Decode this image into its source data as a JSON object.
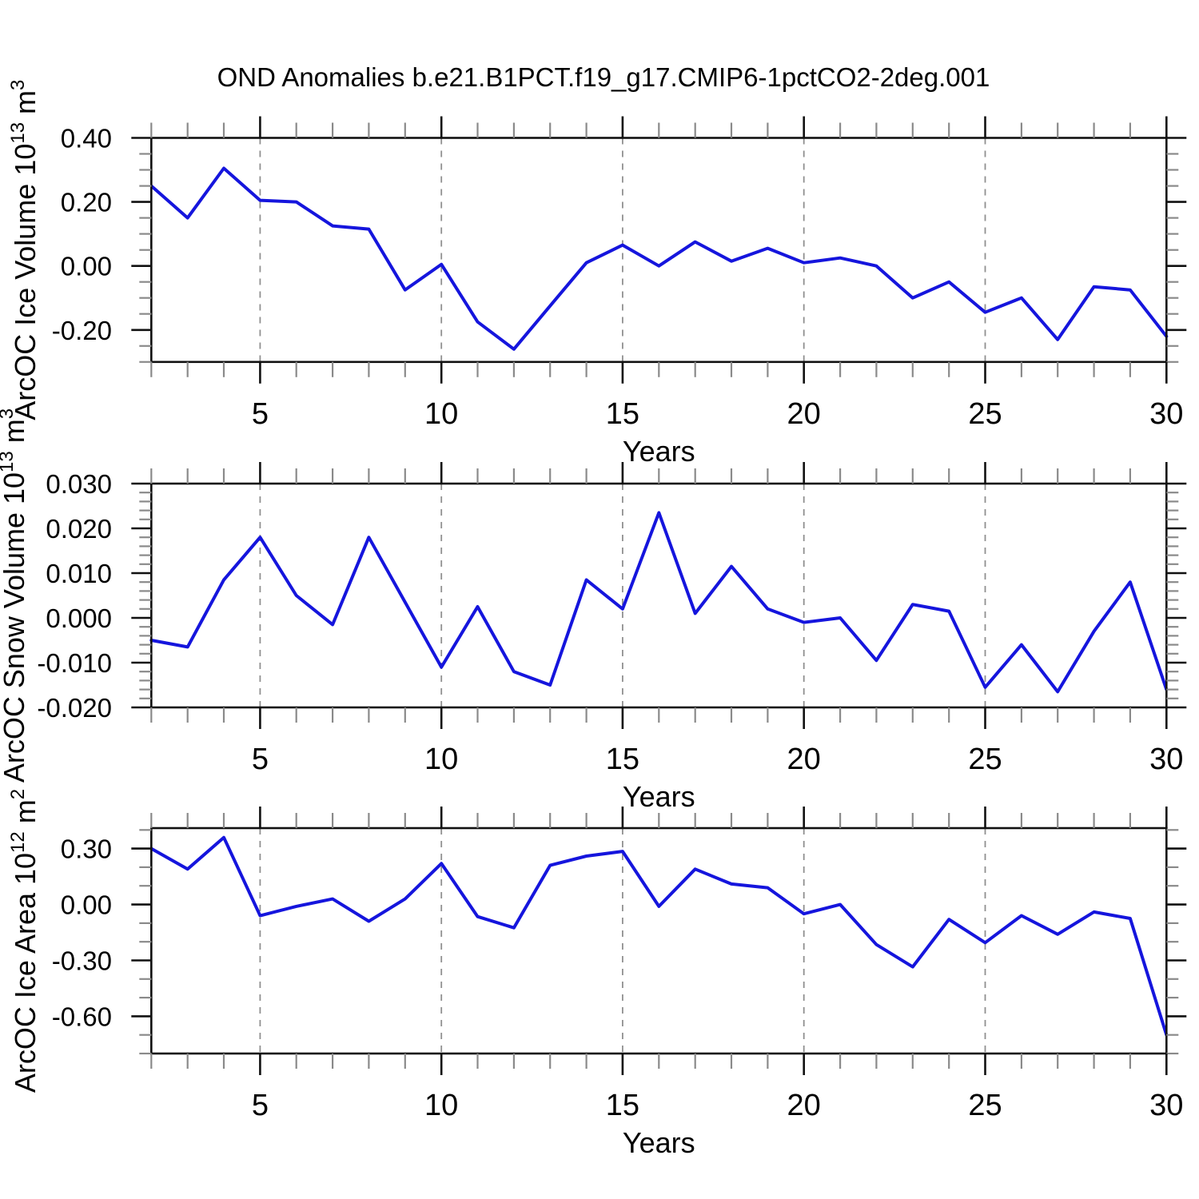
{
  "title": "OND Anomalies b.e21.B1PCT.f19_g17.CMIP6-1pctCO2-2deg.001",
  "colors": {
    "line": "#1515dd",
    "axis": "#111111",
    "minor_tick": "#8a8a8a",
    "grid": "#909090",
    "text": "#000000",
    "background": "#ffffff"
  },
  "chart_data": [
    {
      "type": "line",
      "name": "arcoc-ice-volume",
      "ylabel": "ArcOC Ice Volume 10^13 m^3",
      "ylabel_segments": [
        {
          "t": "ArcOC Ice Volume 10"
        },
        {
          "t": "13",
          "sup": true
        },
        {
          "t": " m"
        },
        {
          "t": "3",
          "sup": true
        }
      ],
      "xlabel": "Years",
      "xlim": [
        2,
        30
      ],
      "ylim": [
        -0.3,
        0.4
      ],
      "x": [
        2,
        3,
        4,
        5,
        6,
        7,
        8,
        9,
        10,
        11,
        12,
        13,
        14,
        15,
        16,
        17,
        18,
        19,
        20,
        21,
        22,
        23,
        24,
        25,
        26,
        27,
        28,
        29,
        30
      ],
      "values": [
        0.25,
        0.15,
        0.305,
        0.205,
        0.2,
        0.125,
        0.115,
        -0.075,
        0.005,
        -0.175,
        -0.26,
        -0.125,
        0.01,
        0.065,
        0.0,
        0.075,
        0.015,
        0.055,
        0.01,
        0.025,
        0.0,
        -0.1,
        -0.05,
        -0.145,
        -0.1,
        -0.23,
        -0.065,
        -0.075,
        -0.22
      ],
      "yticks": [
        0.4,
        0.2,
        0.0,
        -0.2
      ],
      "ytick_labels": [
        "0.40",
        "0.20",
        "0.00",
        "-0.20"
      ],
      "ytick_minor_step": 0.05,
      "xticks": [
        5,
        10,
        15,
        20,
        25,
        30
      ],
      "xtick_labels": [
        "5",
        "10",
        "15",
        "20",
        "25",
        "30"
      ],
      "xgrid": [
        5,
        10,
        15,
        20,
        25
      ]
    },
    {
      "type": "line",
      "name": "arcoc-snow-volume",
      "ylabel": "ArcOC Snow Volume 10^13 m^3",
      "ylabel_segments": [
        {
          "t": "ArcOC Snow Volume 10"
        },
        {
          "t": "13",
          "sup": true
        },
        {
          "t": " m"
        },
        {
          "t": "3",
          "sup": true
        }
      ],
      "xlabel": "Years",
      "xlim": [
        2,
        30
      ],
      "ylim": [
        -0.02,
        0.03
      ],
      "x": [
        2,
        3,
        4,
        5,
        6,
        7,
        8,
        9,
        10,
        11,
        12,
        13,
        14,
        15,
        16,
        17,
        18,
        19,
        20,
        21,
        22,
        23,
        24,
        25,
        26,
        27,
        28,
        29,
        30
      ],
      "values": [
        -0.005,
        -0.0065,
        0.0085,
        0.018,
        0.005,
        -0.0015,
        0.018,
        0.0035,
        -0.011,
        0.0025,
        -0.012,
        -0.015,
        0.0085,
        0.002,
        0.0235,
        0.001,
        0.0115,
        0.002,
        -0.001,
        0.0,
        -0.0095,
        0.003,
        0.0015,
        -0.0155,
        -0.006,
        -0.0165,
        -0.003,
        0.008,
        -0.016
      ],
      "yticks": [
        0.03,
        0.02,
        0.01,
        0.0,
        -0.01,
        -0.02
      ],
      "ytick_labels": [
        "0.030",
        "0.020",
        "0.010",
        "0.000",
        "-0.010",
        "-0.020"
      ],
      "ytick_minor_step": 0.002,
      "xticks": [
        5,
        10,
        15,
        20,
        25,
        30
      ],
      "xtick_labels": [
        "5",
        "10",
        "15",
        "20",
        "25",
        "30"
      ],
      "xgrid": [
        5,
        10,
        15,
        20,
        25
      ]
    },
    {
      "type": "line",
      "name": "arcoc-ice-area",
      "ylabel": "ArcOC Ice Area 10^12 m^2",
      "ylabel_segments": [
        {
          "t": "ArcOC Ice Area 10"
        },
        {
          "t": "12",
          "sup": true
        },
        {
          "t": " m"
        },
        {
          "t": "2",
          "sup": true
        }
      ],
      "xlabel": "Years",
      "xlim": [
        2,
        30
      ],
      "ylim": [
        -0.8,
        0.41
      ],
      "x": [
        2,
        3,
        4,
        5,
        6,
        7,
        8,
        9,
        10,
        11,
        12,
        13,
        14,
        15,
        16,
        17,
        18,
        19,
        20,
        21,
        22,
        23,
        24,
        25,
        26,
        27,
        28,
        29,
        30
      ],
      "values": [
        0.3,
        0.19,
        0.36,
        -0.06,
        -0.01,
        0.03,
        -0.09,
        0.03,
        0.22,
        -0.065,
        -0.125,
        0.21,
        0.26,
        0.285,
        -0.01,
        0.19,
        0.11,
        0.09,
        -0.05,
        0.0,
        -0.215,
        -0.335,
        -0.08,
        -0.205,
        -0.06,
        -0.16,
        -0.04,
        -0.075,
        -0.7
      ],
      "yticks": [
        0.3,
        0.0,
        -0.3,
        -0.6
      ],
      "ytick_labels": [
        "0.30",
        "0.00",
        "-0.30",
        "-0.60"
      ],
      "ytick_minor_step": 0.1,
      "xticks": [
        5,
        10,
        15,
        20,
        25,
        30
      ],
      "xtick_labels": [
        "5",
        "10",
        "15",
        "20",
        "25",
        "30"
      ],
      "xgrid": [
        5,
        10,
        15,
        20,
        25
      ]
    }
  ]
}
